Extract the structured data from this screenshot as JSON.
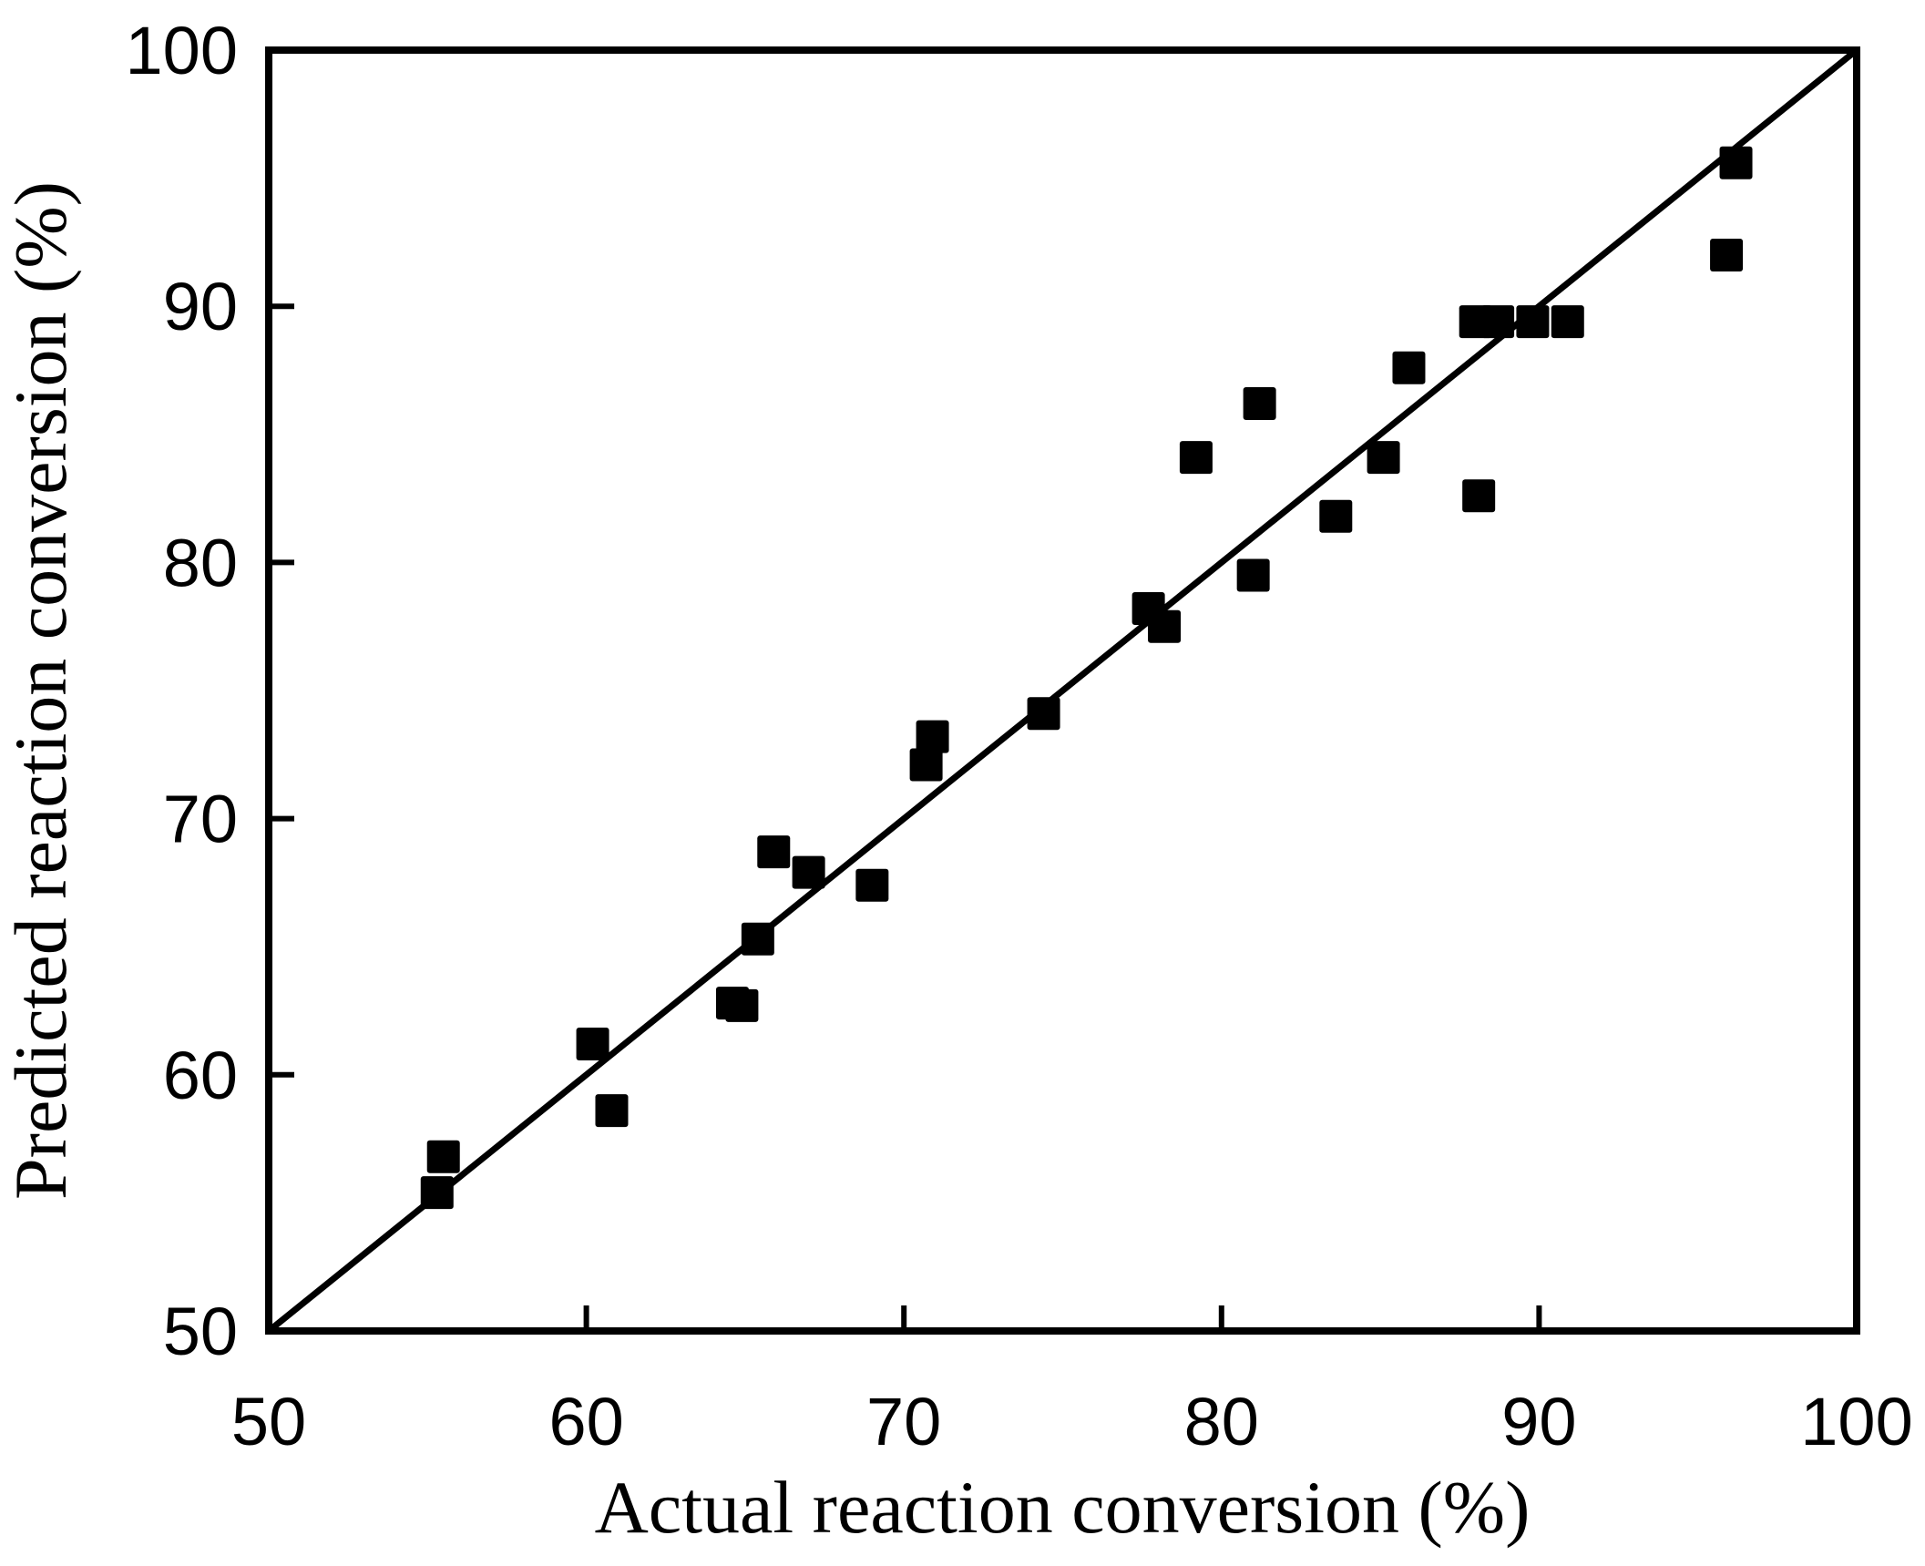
{
  "figure": {
    "background_color": "#ffffff",
    "ink_color": "#000000"
  },
  "chart_data": {
    "type": "scatter",
    "title": "",
    "xlabel": "Actual reaction conversion (%)",
    "ylabel": "Predicted reaction conversion (%)",
    "xlim": [
      50,
      100
    ],
    "ylim": [
      50,
      100
    ],
    "x_ticks": [
      50,
      60,
      70,
      80,
      90,
      100
    ],
    "y_ticks": [
      50,
      60,
      70,
      80,
      90,
      100
    ],
    "grid": false,
    "legend": "none",
    "marker": "filled-square",
    "marker_color": "#000000",
    "reference_line": {
      "type": "identity",
      "from": [
        50,
        50
      ],
      "to": [
        100,
        100
      ],
      "color": "#000000"
    },
    "series": [
      {
        "name": "predicted-vs-actual",
        "points": [
          [
            55.3,
            55.4
          ],
          [
            55.5,
            56.8
          ],
          [
            60.2,
            61.2
          ],
          [
            60.8,
            58.6
          ],
          [
            64.6,
            62.8
          ],
          [
            64.9,
            62.7
          ],
          [
            65.4,
            65.3
          ],
          [
            65.9,
            68.7
          ],
          [
            67.0,
            67.9
          ],
          [
            69.0,
            67.4
          ],
          [
            70.7,
            72.1
          ],
          [
            70.9,
            73.2
          ],
          [
            74.4,
            74.1
          ],
          [
            77.7,
            78.2
          ],
          [
            78.2,
            77.5
          ],
          [
            79.2,
            84.1
          ],
          [
            81.0,
            79.5
          ],
          [
            81.2,
            86.2
          ],
          [
            83.6,
            81.8
          ],
          [
            85.1,
            84.1
          ],
          [
            85.9,
            87.6
          ],
          [
            88.0,
            89.4
          ],
          [
            88.1,
            82.6
          ],
          [
            88.7,
            89.4
          ],
          [
            89.8,
            89.4
          ],
          [
            90.9,
            89.4
          ],
          [
            95.9,
            92.0
          ],
          [
            96.2,
            95.6
          ]
        ]
      }
    ]
  }
}
